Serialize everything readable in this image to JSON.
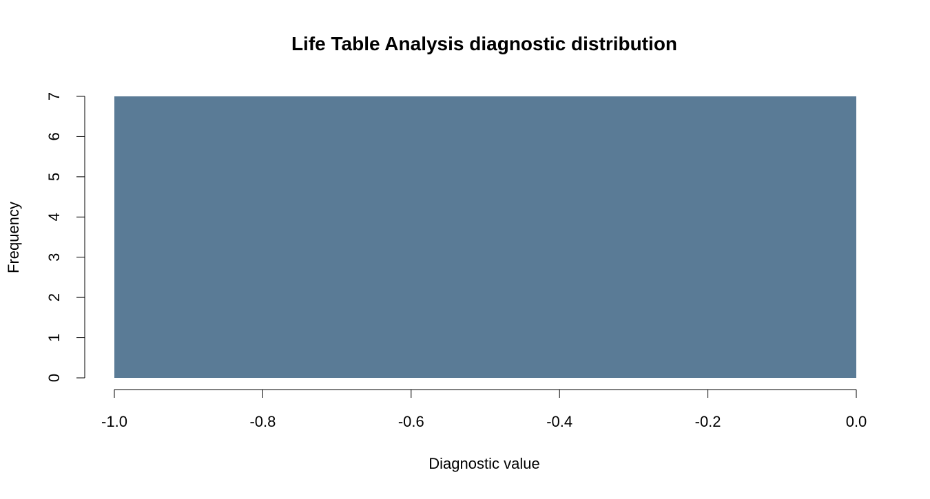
{
  "chart_data": {
    "type": "bar",
    "title": "Life Table Analysis diagnostic distribution",
    "xlabel": "Diagnostic value",
    "ylabel": "Frequency",
    "bins": [
      {
        "x_start": -1.0,
        "x_end": 0.0,
        "count": 7
      }
    ],
    "xlim": [
      -1.0,
      0.0
    ],
    "ylim": [
      0,
      7
    ],
    "x_ticks": [
      -1.0,
      -0.8,
      -0.6,
      -0.4,
      -0.2,
      0.0
    ],
    "x_tick_labels": [
      "-1.0",
      "-0.8",
      "-0.6",
      "-0.4",
      "-0.2",
      "0.0"
    ],
    "y_ticks": [
      0,
      1,
      2,
      3,
      4,
      5,
      6,
      7
    ],
    "y_tick_labels": [
      "0",
      "1",
      "2",
      "3",
      "4",
      "5",
      "6",
      "7"
    ],
    "bar_color": "#5a7b96",
    "grid": false,
    "legend": "none"
  }
}
